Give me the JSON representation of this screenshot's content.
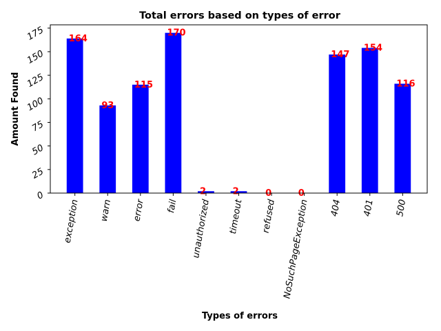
{
  "chart_data": {
    "type": "bar",
    "title": "Total errors based on types of error",
    "xlabel": "Types of errors",
    "ylabel": "Amount Found",
    "categories": [
      "exception",
      "warn",
      "error",
      "fail",
      "unauthorized",
      "timeout",
      "refused",
      "NoSuchPageException",
      "404",
      "401",
      "500"
    ],
    "values": [
      164,
      93,
      115,
      170,
      2,
      2,
      0,
      0,
      147,
      154,
      116
    ],
    "ylim": [
      0,
      178.5
    ],
    "yticks": [
      0,
      25,
      50,
      75,
      100,
      125,
      150,
      175
    ],
    "grid": false,
    "legend": "none",
    "bar_color": "#0000ff",
    "label_color": "#ff0000"
  }
}
